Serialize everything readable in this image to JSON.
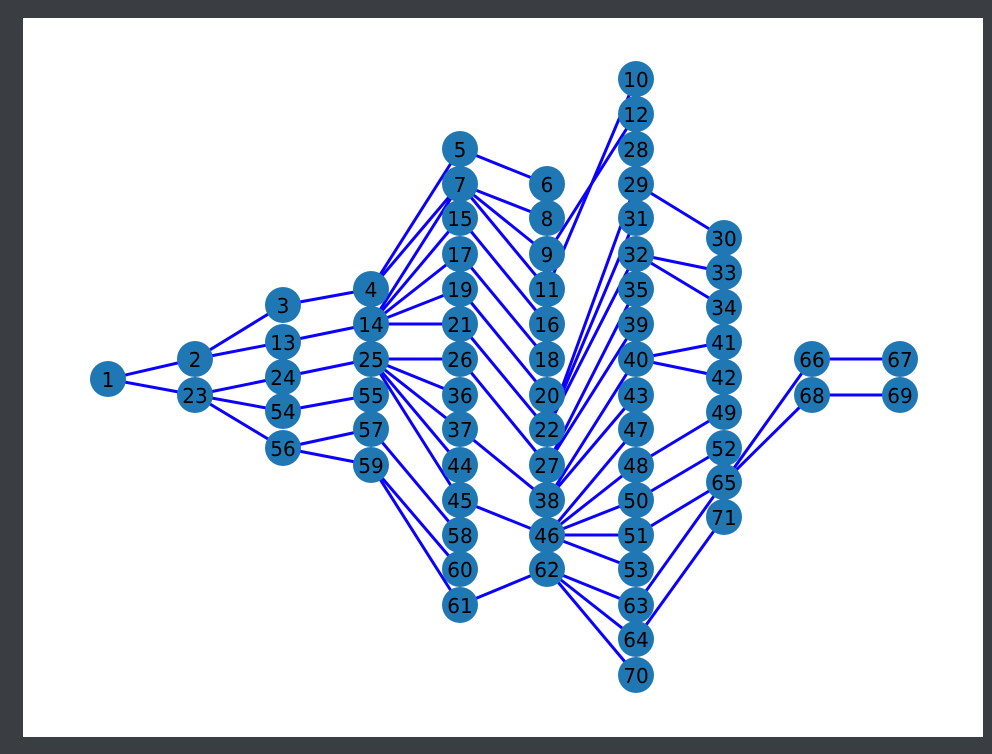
{
  "graph": {
    "nodes": [
      "1",
      "2",
      "23",
      "3",
      "13",
      "24",
      "54",
      "56",
      "4",
      "14",
      "25",
      "55",
      "57",
      "59",
      "5",
      "7",
      "15",
      "17",
      "19",
      "21",
      "26",
      "36",
      "37",
      "44",
      "45",
      "58",
      "60",
      "61",
      "6",
      "8",
      "9",
      "11",
      "16",
      "18",
      "20",
      "22",
      "27",
      "38",
      "46",
      "62",
      "10",
      "12",
      "28",
      "29",
      "31",
      "32",
      "35",
      "39",
      "40",
      "43",
      "47",
      "48",
      "50",
      "51",
      "53",
      "63",
      "64",
      "70",
      "30",
      "33",
      "34",
      "41",
      "42",
      "49",
      "52",
      "65",
      "71",
      "66",
      "68",
      "67",
      "69"
    ],
    "edges": [
      [
        "1",
        "2"
      ],
      [
        "1",
        "23"
      ],
      [
        "2",
        "3"
      ],
      [
        "2",
        "13"
      ],
      [
        "23",
        "24"
      ],
      [
        "23",
        "54"
      ],
      [
        "23",
        "56"
      ],
      [
        "3",
        "4"
      ],
      [
        "13",
        "14"
      ],
      [
        "24",
        "25"
      ],
      [
        "54",
        "55"
      ],
      [
        "56",
        "57"
      ],
      [
        "56",
        "59"
      ],
      [
        "4",
        "5"
      ],
      [
        "4",
        "7"
      ],
      [
        "14",
        "7"
      ],
      [
        "14",
        "15"
      ],
      [
        "14",
        "17"
      ],
      [
        "14",
        "19"
      ],
      [
        "14",
        "21"
      ],
      [
        "25",
        "26"
      ],
      [
        "25",
        "36"
      ],
      [
        "25",
        "37"
      ],
      [
        "25",
        "44"
      ],
      [
        "25",
        "45"
      ],
      [
        "57",
        "58"
      ],
      [
        "59",
        "60"
      ],
      [
        "59",
        "61"
      ],
      [
        "5",
        "6"
      ],
      [
        "7",
        "8"
      ],
      [
        "7",
        "9"
      ],
      [
        "7",
        "11"
      ],
      [
        "15",
        "16"
      ],
      [
        "17",
        "18"
      ],
      [
        "19",
        "20"
      ],
      [
        "21",
        "22"
      ],
      [
        "26",
        "27"
      ],
      [
        "37",
        "38"
      ],
      [
        "45",
        "46"
      ],
      [
        "61",
        "62"
      ],
      [
        "9",
        "12"
      ],
      [
        "11",
        "10"
      ],
      [
        "22",
        "29"
      ],
      [
        "22",
        "31"
      ],
      [
        "22",
        "32"
      ],
      [
        "27",
        "35"
      ],
      [
        "27",
        "39"
      ],
      [
        "38",
        "40"
      ],
      [
        "38",
        "43"
      ],
      [
        "46",
        "47"
      ],
      [
        "46",
        "48"
      ],
      [
        "46",
        "50"
      ],
      [
        "46",
        "51"
      ],
      [
        "46",
        "53"
      ],
      [
        "62",
        "63"
      ],
      [
        "62",
        "64"
      ],
      [
        "62",
        "70"
      ],
      [
        "29",
        "30"
      ],
      [
        "32",
        "33"
      ],
      [
        "32",
        "34"
      ],
      [
        "40",
        "41"
      ],
      [
        "40",
        "42"
      ],
      [
        "48",
        "49"
      ],
      [
        "50",
        "52"
      ],
      [
        "51",
        "65"
      ],
      [
        "63",
        "65"
      ],
      [
        "64",
        "71"
      ],
      [
        "65",
        "66"
      ],
      [
        "65",
        "68"
      ],
      [
        "66",
        "67"
      ],
      [
        "68",
        "69"
      ]
    ]
  },
  "colors": {
    "node_fill": "#1f77b4",
    "edge": "#0b00ff",
    "label": "#000000",
    "canvas": "#ffffff",
    "frame": "#3a3d41"
  }
}
